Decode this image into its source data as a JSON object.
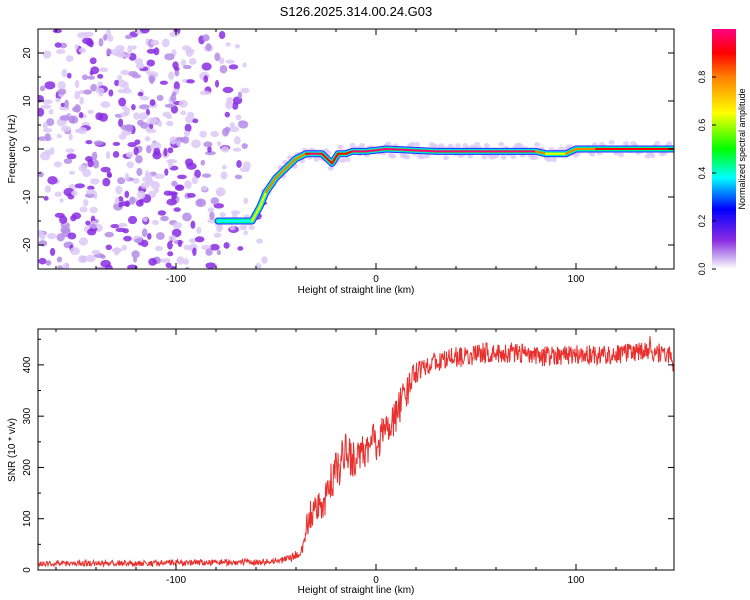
{
  "figure_title": "S126.2025.314.00.24.G03",
  "chart_data": [
    {
      "type": "heatmap",
      "title": "",
      "xlabel": "Height of straight line (km)",
      "ylabel": "Frequency (Hz)",
      "xlim": [
        -169,
        149
      ],
      "ylim": [
        -25,
        25
      ],
      "xticks": [
        -100,
        0,
        100
      ],
      "yticks": [
        20,
        10,
        0,
        -10,
        -20
      ],
      "colorbar": {
        "label": "Normalized spectral amplitude",
        "range": [
          0,
          1
        ],
        "ticks": [
          0.0,
          0.2,
          0.4,
          0.6,
          0.8
        ],
        "colors": [
          "#ffffff",
          "#c8a8f0",
          "#8a2be2",
          "#0000ff",
          "#00ffff",
          "#00ff00",
          "#ffff00",
          "#ff8000",
          "#ff0000",
          "#ff0080"
        ]
      },
      "noise_region": {
        "x_range": [
          -169,
          -55
        ],
        "freq_range": [
          -25,
          25
        ],
        "amplitude": [
          0.02,
          0.2
        ]
      },
      "ridge": {
        "x": [
          -79,
          -62,
          -58,
          -55,
          -50,
          -45,
          -40,
          -35,
          -33,
          -27,
          -22,
          -19,
          -15,
          -12,
          -5,
          5,
          30,
          60,
          80,
          85,
          95,
          100,
          110,
          120,
          149
        ],
        "freq": [
          -15,
          -15,
          -12,
          -9,
          -6,
          -4,
          -2,
          -1,
          -1,
          -1,
          -3,
          -1,
          -1,
          -0.5,
          -0.5,
          0,
          -0.5,
          -0.5,
          -0.5,
          -1,
          -1,
          0,
          0,
          0,
          0
        ],
        "amplitude": [
          0.3,
          0.45,
          0.6,
          0.7,
          0.7,
          0.75,
          0.8,
          0.8,
          0.9,
          0.95,
          0.8,
          0.85,
          0.85,
          0.95,
          0.95,
          0.95,
          0.9,
          0.95,
          0.9,
          0.7,
          0.6,
          0.75,
          0.85,
          0.9,
          0.8
        ]
      }
    },
    {
      "type": "line",
      "title": "",
      "xlabel": "Height of straight line (km)",
      "ylabel": "SNR (10 * v/v)",
      "xlim": [
        -169,
        149
      ],
      "ylim": [
        0,
        470
      ],
      "xticks": [
        -100,
        0,
        100
      ],
      "yticks": [
        0,
        100,
        200,
        300,
        400
      ],
      "series": [
        {
          "name": "SNR",
          "color": "#e8302e",
          "x": [
            -169,
            -150,
            -120,
            -100,
            -80,
            -60,
            -48,
            -42,
            -38,
            -36,
            -35,
            -33,
            -30,
            -26,
            -22,
            -18,
            -15,
            -12,
            -10,
            -6,
            -2,
            0,
            4,
            8,
            12,
            16,
            18,
            20,
            25,
            30,
            40,
            50,
            55,
            60,
            70,
            80,
            90,
            100,
            110,
            120,
            130,
            140,
            146,
            149
          ],
          "y": [
            12,
            13,
            13,
            14,
            15,
            15,
            18,
            25,
            32,
            50,
            80,
            105,
            115,
            130,
            175,
            205,
            230,
            220,
            215,
            225,
            250,
            250,
            265,
            290,
            320,
            350,
            380,
            390,
            400,
            405,
            415,
            420,
            425,
            420,
            425,
            415,
            420,
            420,
            420,
            420,
            425,
            425,
            420,
            400
          ],
          "noise": [
            5,
            6,
            6,
            6,
            6,
            6,
            6,
            8,
            10,
            15,
            25,
            30,
            30,
            35,
            40,
            40,
            40,
            40,
            40,
            40,
            40,
            40,
            40,
            40,
            35,
            30,
            25,
            25,
            20,
            20,
            20,
            20,
            20,
            20,
            20,
            20,
            20,
            20,
            20,
            20,
            20,
            20,
            20,
            20
          ]
        }
      ]
    }
  ]
}
